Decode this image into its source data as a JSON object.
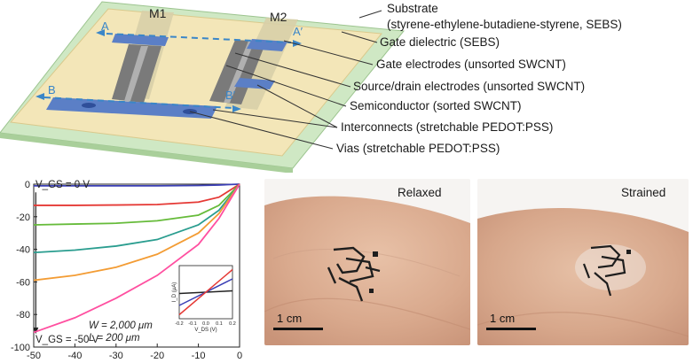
{
  "panel_a": {
    "device_labels": [
      "M1",
      "M2"
    ],
    "cut_labels": {
      "a_start": "A",
      "a_end": "A′",
      "b_start": "B",
      "b_end": "B′"
    },
    "callouts": [
      {
        "line1": "Substrate",
        "line2": "(styrene-ethylene-butadiene-styrene, SEBS)"
      },
      {
        "line1": "Gate dielectric (SEBS)"
      },
      {
        "line1": "Gate electrodes (unsorted SWCNT)"
      },
      {
        "line1": "Source/drain electrodes (unsorted SWCNT)"
      },
      {
        "line1": "Semiconductor (sorted SWCNT)"
      },
      {
        "line1": "Interconnects (stretchable PEDOT:PSS)"
      },
      {
        "line1": "Vias (stretchable PEDOT:PSS)"
      }
    ],
    "colors": {
      "substrate": "#cfe8c4",
      "dielectric": "#f3e6b8",
      "interconnect": "#5b7fc6",
      "electrode": "#8a8a8a",
      "arrow": "#3a86c8"
    }
  },
  "chart_data": {
    "type": "line",
    "xlim": [
      -50,
      0
    ],
    "ylim": [
      -100,
      0
    ],
    "x_ticks": [
      "-50",
      "-40",
      "-30",
      "-20",
      "-10",
      "0"
    ],
    "y_ticks": [
      "0",
      "-20",
      "-40",
      "-60",
      "-80",
      "-100"
    ],
    "annotations": {
      "vgs_top": "V_GS = 0 V",
      "vgs_bottom": "V_GS = -50 V",
      "w": "W = 2,000 μm",
      "l": "L = 200 μm"
    },
    "series": [
      {
        "color": "#3b3fb5",
        "x": [
          -50,
          -40,
          -30,
          -20,
          -10,
          -5,
          0
        ],
        "y": [
          -1,
          -1,
          -1,
          -1,
          -0.8,
          -0.5,
          0
        ]
      },
      {
        "color": "#e53935",
        "x": [
          -50,
          -40,
          -30,
          -20,
          -10,
          -5,
          0
        ],
        "y": [
          -13,
          -13,
          -12.8,
          -12.5,
          -11,
          -8,
          0
        ]
      },
      {
        "color": "#66bb3a",
        "x": [
          -50,
          -40,
          -30,
          -20,
          -10,
          -5,
          0
        ],
        "y": [
          -25,
          -24.5,
          -24,
          -22.5,
          -19,
          -13,
          0
        ]
      },
      {
        "color": "#2a9d8f",
        "x": [
          -50,
          -40,
          -30,
          -20,
          -10,
          -5,
          0
        ],
        "y": [
          -42,
          -40.5,
          -38,
          -34,
          -25,
          -16,
          0
        ]
      },
      {
        "color": "#f39c34",
        "x": [
          -50,
          -40,
          -30,
          -20,
          -10,
          -5,
          0
        ],
        "y": [
          -59,
          -56,
          -51,
          -43,
          -30,
          -18,
          0
        ]
      },
      {
        "color": "#ff4fa0",
        "x": [
          -50,
          -40,
          -30,
          -20,
          -10,
          -5,
          0
        ],
        "y": [
          -91,
          -82,
          -70,
          -56,
          -37,
          -21,
          0
        ]
      }
    ],
    "inset": {
      "xlim": [
        -0.2,
        0.2
      ],
      "ylim": [
        -2,
        2
      ],
      "x_ticks": [
        "-0.2",
        "-0.1",
        "0.0",
        "0.1",
        "0.2"
      ],
      "xlabel": "V_DS (V)",
      "ylabel": "I_D (μA)",
      "series": [
        {
          "color": "#222222",
          "x": [
            -0.2,
            0.2
          ],
          "y": [
            -0.1,
            0.1
          ]
        },
        {
          "color": "#3b3fb5",
          "x": [
            -0.2,
            0.2
          ],
          "y": [
            -1.0,
            1.0
          ]
        },
        {
          "color": "#e53935",
          "x": [
            -0.2,
            0.2
          ],
          "y": [
            -1.7,
            1.7
          ]
        }
      ]
    }
  },
  "photos": {
    "relaxed_label": "Relaxed",
    "strained_label": "Strained",
    "scale_relaxed": "1 cm",
    "scale_strained": "1 cm"
  }
}
